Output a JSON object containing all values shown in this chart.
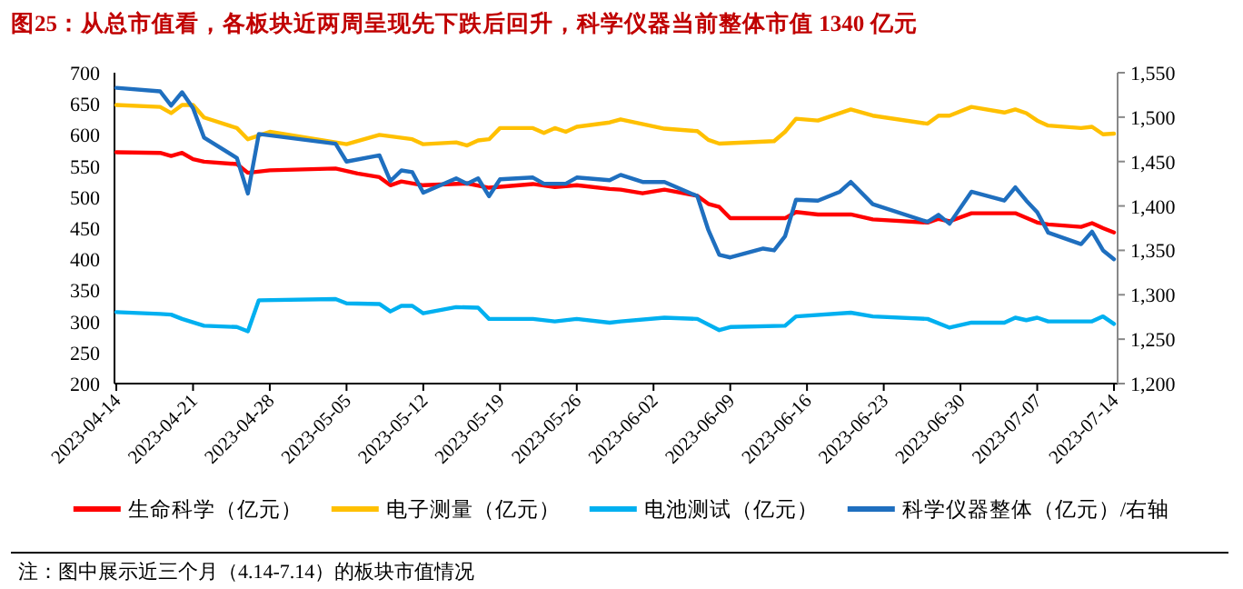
{
  "chart_data": {
    "type": "line",
    "title": "图25：从总市值看，各板块近两周呈现先下跌后回升，科学仪器当前整体市值 1340 亿元",
    "annotations": [
      "注：图中展示近三个月（4.14-7.14）的板块市值情况"
    ],
    "xlim": [
      "2023-04-14",
      "2023-07-14"
    ],
    "xticks": [
      "2023-04-14",
      "2023-04-21",
      "2023-04-28",
      "2023-05-05",
      "2023-05-12",
      "2023-05-19",
      "2023-05-26",
      "2023-06-02",
      "2023-06-09",
      "2023-06-16",
      "2023-06-23",
      "2023-06-30",
      "2023-07-07",
      "2023-07-14"
    ],
    "ylim": [
      200,
      700
    ],
    "yticks": [
      200,
      250,
      300,
      350,
      400,
      450,
      500,
      550,
      600,
      650,
      700
    ],
    "y2lim": [
      1200,
      1550
    ],
    "y2ticks": [
      {
        "value": 1200,
        "label": "1,200"
      },
      {
        "value": 1250,
        "label": "1,250"
      },
      {
        "value": 1300,
        "label": "1,300"
      },
      {
        "value": 1350,
        "label": "1,350"
      },
      {
        "value": 1400,
        "label": "1,400"
      },
      {
        "value": 1450,
        "label": "1,450"
      },
      {
        "value": 1500,
        "label": "1,500"
      },
      {
        "value": 1550,
        "label": "1,550"
      }
    ],
    "legend": "bottom",
    "grid": false,
    "series": [
      {
        "name": "生命科学（亿元）",
        "color": "#ff0000",
        "x": [
          "2023-04-14",
          "2023-04-18",
          "2023-04-19",
          "2023-04-20",
          "2023-04-21",
          "2023-04-22",
          "2023-04-25",
          "2023-04-26",
          "2023-04-28",
          "2023-05-04",
          "2023-05-06",
          "2023-05-08",
          "2023-05-09",
          "2023-05-10",
          "2023-05-12",
          "2023-05-16",
          "2023-05-18",
          "2023-05-22",
          "2023-05-24",
          "2023-05-26",
          "2023-05-29",
          "2023-05-30",
          "2023-06-01",
          "2023-06-03",
          "2023-06-06",
          "2023-06-07",
          "2023-06-08",
          "2023-06-09",
          "2023-06-14",
          "2023-06-15",
          "2023-06-17",
          "2023-06-20",
          "2023-06-22",
          "2023-06-27",
          "2023-06-28",
          "2023-06-29",
          "2023-07-01",
          "2023-07-05",
          "2023-07-07",
          "2023-07-08",
          "2023-07-11",
          "2023-07-12",
          "2023-07-13",
          "2023-07-14"
        ],
        "values": [
          572,
          571,
          566,
          571,
          561,
          557,
          553,
          539,
          543,
          546,
          538,
          532,
          519,
          525,
          519,
          522,
          515,
          521,
          516,
          519,
          513,
          512,
          506,
          512,
          502,
          489,
          484,
          466,
          466,
          476,
          472,
          472,
          464,
          459,
          465,
          461,
          474,
          474,
          459,
          456,
          452,
          458,
          450,
          443
        ]
      },
      {
        "name": "电子测量（亿元）",
        "color": "#ffc000",
        "x": [
          "2023-04-14",
          "2023-04-18",
          "2023-04-19",
          "2023-04-20",
          "2023-04-21",
          "2023-04-22",
          "2023-04-25",
          "2023-04-26",
          "2023-04-28",
          "2023-05-04",
          "2023-05-05",
          "2023-05-08",
          "2023-05-11",
          "2023-05-12",
          "2023-05-15",
          "2023-05-16",
          "2023-05-17",
          "2023-05-18",
          "2023-05-19",
          "2023-05-22",
          "2023-05-23",
          "2023-05-24",
          "2023-05-25",
          "2023-05-26",
          "2023-05-29",
          "2023-05-30",
          "2023-06-03",
          "2023-06-06",
          "2023-06-07",
          "2023-06-08",
          "2023-06-13",
          "2023-06-14",
          "2023-06-15",
          "2023-06-17",
          "2023-06-20",
          "2023-06-22",
          "2023-06-27",
          "2023-06-28",
          "2023-06-29",
          "2023-07-01",
          "2023-07-04",
          "2023-07-05",
          "2023-07-06",
          "2023-07-07",
          "2023-07-08",
          "2023-07-11",
          "2023-07-12",
          "2023-07-13",
          "2023-07-14"
        ],
        "values": [
          648,
          645,
          635,
          648,
          648,
          628,
          611,
          593,
          605,
          588,
          585,
          600,
          593,
          585,
          588,
          583,
          591,
          593,
          611,
          611,
          603,
          611,
          605,
          613,
          620,
          625,
          610,
          606,
          592,
          586,
          590,
          605,
          626,
          623,
          641,
          631,
          618,
          631,
          631,
          645,
          636,
          641,
          635,
          623,
          615,
          611,
          613,
          601,
          602
        ]
      },
      {
        "name": "电池测试（亿元）",
        "color": "#00b0f0",
        "x": [
          "2023-04-14",
          "2023-04-18",
          "2023-04-19",
          "2023-04-20",
          "2023-04-22",
          "2023-04-25",
          "2023-04-26",
          "2023-04-27",
          "2023-05-04",
          "2023-05-05",
          "2023-05-08",
          "2023-05-09",
          "2023-05-10",
          "2023-05-11",
          "2023-05-12",
          "2023-05-15",
          "2023-05-17",
          "2023-05-18",
          "2023-05-22",
          "2023-05-24",
          "2023-05-26",
          "2023-05-29",
          "2023-05-30",
          "2023-06-03",
          "2023-06-06",
          "2023-06-08",
          "2023-06-09",
          "2023-06-14",
          "2023-06-15",
          "2023-06-20",
          "2023-06-22",
          "2023-06-27",
          "2023-06-29",
          "2023-07-01",
          "2023-07-04",
          "2023-07-05",
          "2023-07-06",
          "2023-07-07",
          "2023-07-08",
          "2023-07-12",
          "2023-07-13",
          "2023-07-14"
        ],
        "values": [
          315,
          312,
          311,
          304,
          293,
          291,
          284,
          334,
          336,
          329,
          328,
          316,
          325,
          325,
          313,
          323,
          322,
          304,
          304,
          300,
          304,
          298,
          300,
          306,
          304,
          286,
          291,
          293,
          308,
          314,
          308,
          304,
          290,
          298,
          298,
          306,
          302,
          306,
          300,
          300,
          308,
          296
        ]
      },
      {
        "name": "科学仪器整体（亿元）/右轴",
        "color": "#1f6fbf",
        "axis": "y2",
        "x": [
          "2023-04-14",
          "2023-04-18",
          "2023-04-19",
          "2023-04-20",
          "2023-04-21",
          "2023-04-22",
          "2023-04-25",
          "2023-04-26",
          "2023-04-27",
          "2023-05-04",
          "2023-05-05",
          "2023-05-08",
          "2023-05-09",
          "2023-05-10",
          "2023-05-11",
          "2023-05-12",
          "2023-05-15",
          "2023-05-16",
          "2023-05-17",
          "2023-05-18",
          "2023-05-19",
          "2023-05-22",
          "2023-05-23",
          "2023-05-25",
          "2023-05-26",
          "2023-05-29",
          "2023-05-30",
          "2023-06-01",
          "2023-06-03",
          "2023-06-06",
          "2023-06-07",
          "2023-06-08",
          "2023-06-09",
          "2023-06-12",
          "2023-06-13",
          "2023-06-14",
          "2023-06-15",
          "2023-06-17",
          "2023-06-19",
          "2023-06-20",
          "2023-06-22",
          "2023-06-27",
          "2023-06-28",
          "2023-06-29",
          "2023-07-01",
          "2023-07-04",
          "2023-07-05",
          "2023-07-06",
          "2023-07-07",
          "2023-07-08",
          "2023-07-11",
          "2023-07-12",
          "2023-07-13",
          "2023-07-14"
        ],
        "values": [
          1533,
          1529,
          1513,
          1528,
          1510,
          1477,
          1454,
          1414,
          1481,
          1470,
          1450,
          1457,
          1428,
          1440,
          1438,
          1415,
          1431,
          1425,
          1431,
          1411,
          1430,
          1432,
          1425,
          1425,
          1432,
          1429,
          1435,
          1427,
          1427,
          1411,
          1373,
          1345,
          1342,
          1352,
          1350,
          1366,
          1407,
          1406,
          1416,
          1427,
          1402,
          1382,
          1390,
          1380,
          1416,
          1406,
          1421,
          1406,
          1393,
          1370,
          1357,
          1371,
          1350,
          1340
        ]
      }
    ]
  }
}
